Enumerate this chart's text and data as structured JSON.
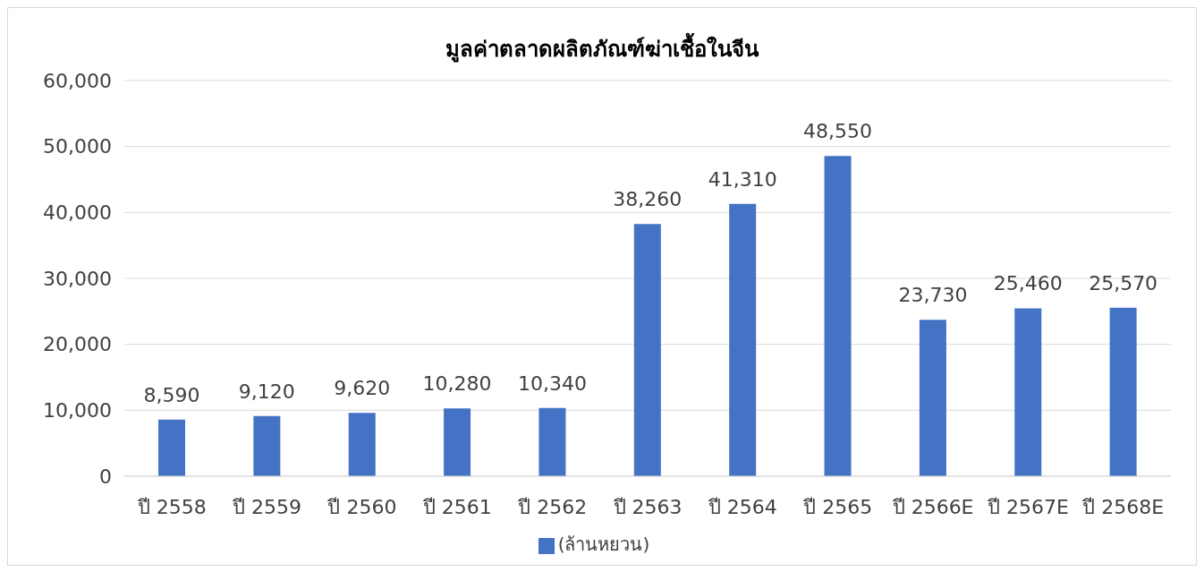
{
  "chart_data": {
    "type": "bar",
    "title": "มูลค่าตลาดผลิตภัณฑ์ฆ่าเชื้อในจีน",
    "categories": [
      "ปี 2558",
      "ปี 2559",
      "ปี 2560",
      "ปี 2561",
      "ปี 2562",
      "ปี 2563",
      "ปี 2564",
      "ปี 2565",
      "ปี 2566E",
      "ปี 2567E",
      "ปี 2568E"
    ],
    "series": [
      {
        "name": "(ล้านหยวน)",
        "color": "#4472c4",
        "values": [
          8590,
          9120,
          9620,
          10280,
          10340,
          38260,
          41310,
          48550,
          23730,
          25460,
          25570
        ],
        "value_labels": [
          "8,590",
          "9,120",
          "9,620",
          "10,280",
          "10,340",
          "38,260",
          "41,310",
          "48,550",
          "23,730",
          "25,460",
          "25,570"
        ]
      }
    ],
    "ylim": [
      0,
      60000
    ],
    "yticks": [
      0,
      {
        "value": 10000,
        "label": "10,000"
      },
      {
        "value": 20000,
        "label": "20,000"
      },
      {
        "value": 30000,
        "label": "30,000"
      },
      {
        "value": 40000,
        "label": "40,000"
      },
      {
        "value": 50000,
        "label": "50,000"
      },
      {
        "value": 60000,
        "label": "60,000"
      }
    ],
    "grid": "y",
    "legend": "bottom"
  }
}
